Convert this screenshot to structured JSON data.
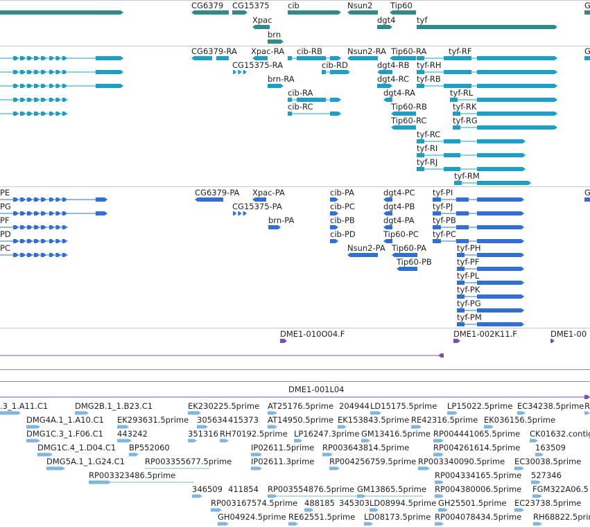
{
  "colors": {
    "gene": "#2e8b87",
    "transcript_a": "#1aa0c7",
    "transcript_b": "#2f6fd6",
    "clone": "#7b4fb3",
    "est": "#7fb6dd",
    "separator": "#c8c8c8"
  },
  "tracks": {
    "genes": {
      "labels": [
        "CG6379",
        "CG15375",
        "cib",
        "Nsun2",
        "Tip60",
        "G",
        "Xpac",
        "dgt4",
        "tyf",
        "brn"
      ]
    },
    "transcripts_a": {
      "labels": [
        "CG6379-RA",
        "Xpac-RA",
        "cib-RB",
        "Nsun2-RA",
        "Tip60-RA",
        "tyf-RF",
        "G",
        "CG15375-RA",
        "cib-RD",
        "dgt4-RB",
        "tyf-RH",
        "brn-RA",
        "dgt4-RC",
        "tyf-RB",
        "cib-RA",
        "dgt4-RA",
        "tyf-RL",
        "cib-RC",
        "Tip60-RB",
        "tyf-RK",
        "Tip60-RC",
        "tyf-RG",
        "tyf-RC",
        "tyf-RI",
        "tyf-RJ",
        "tyf-RM"
      ]
    },
    "transcripts_b": {
      "labels": [
        "PE",
        "CG6379-PA",
        "Xpac-PA",
        "cib-PA",
        "dgt4-PC",
        "tyf-PI",
        "G",
        "PG",
        "CG15375-PA",
        "cib-PC",
        "dgt4-PB",
        "tyf-PJ",
        "PF",
        "brn-PA",
        "cib-PB",
        "dgt4-PA",
        "tyf-PB",
        "PD",
        "cib-PD",
        "Tip60-PC",
        "tyf-PC",
        "PC",
        "Nsun2-PA",
        "Tip60-PA",
        "tyf-PH",
        "Tip60-PB",
        "tyf-PF",
        "tyf-PL",
        "tyf-PK",
        "tyf-PG",
        "tyf-PM"
      ]
    },
    "clones_top": {
      "labels": [
        "DME1-010O04.F",
        "DME1-002K11.F",
        "DME1-00"
      ]
    },
    "clones_bottom": {
      "labels": [
        "DME1-001L04"
      ]
    },
    "ests": {
      "labels": [
        ".3_1.A11.C1",
        "DMG2B.1_1.B23.C1",
        "EK230225.5prime",
        "AT25176.5prime",
        "204944",
        "LD15175.5prime",
        "LP15022.5prime",
        "EC34238.5prime",
        "R",
        "DMG4A.1_1.A10.C1",
        "EK293631.5prime",
        "305634",
        "415373",
        "AT14950.5prime",
        "EK153843.5prime",
        "RE42316.5prime",
        "EK036156.5prime",
        "DMG1C.3_1.F06.C1",
        "443242",
        "351316",
        "RH70192.5prime",
        "LP16247.3prime",
        "GM13416.5prime",
        "RP004441065.5prime",
        "CK01632.contig",
        "DMG1C.4_1.D04.C1",
        "BP552060",
        "IP02611.5prime",
        "RP003643814.5prime",
        "RP004261614.5prime",
        "163509",
        "DMG5A.1_1.G24.C1",
        "RP003355677.5prime",
        "IP02611.3prime",
        "RP004256759.5prime",
        "RP003340090.5prime",
        "EC30038.5prime",
        "RP003323486.5prime",
        "RP004334165.5prime",
        "527346",
        "346509",
        "411854",
        "RP003554876.5prime",
        "GM13865.5prime",
        "RP004380006.5prime",
        "FGM322A06.5",
        "RP003167574.5prime",
        "488185",
        "345303",
        "LD08994.5prime",
        "GH25501.5prime",
        "EC23738.5prime",
        "GH04924.5prime",
        "RE62551.5prime",
        "LD08173.5prime",
        "RP004078434.5prime",
        "RH68822.5prime"
      ]
    }
  }
}
